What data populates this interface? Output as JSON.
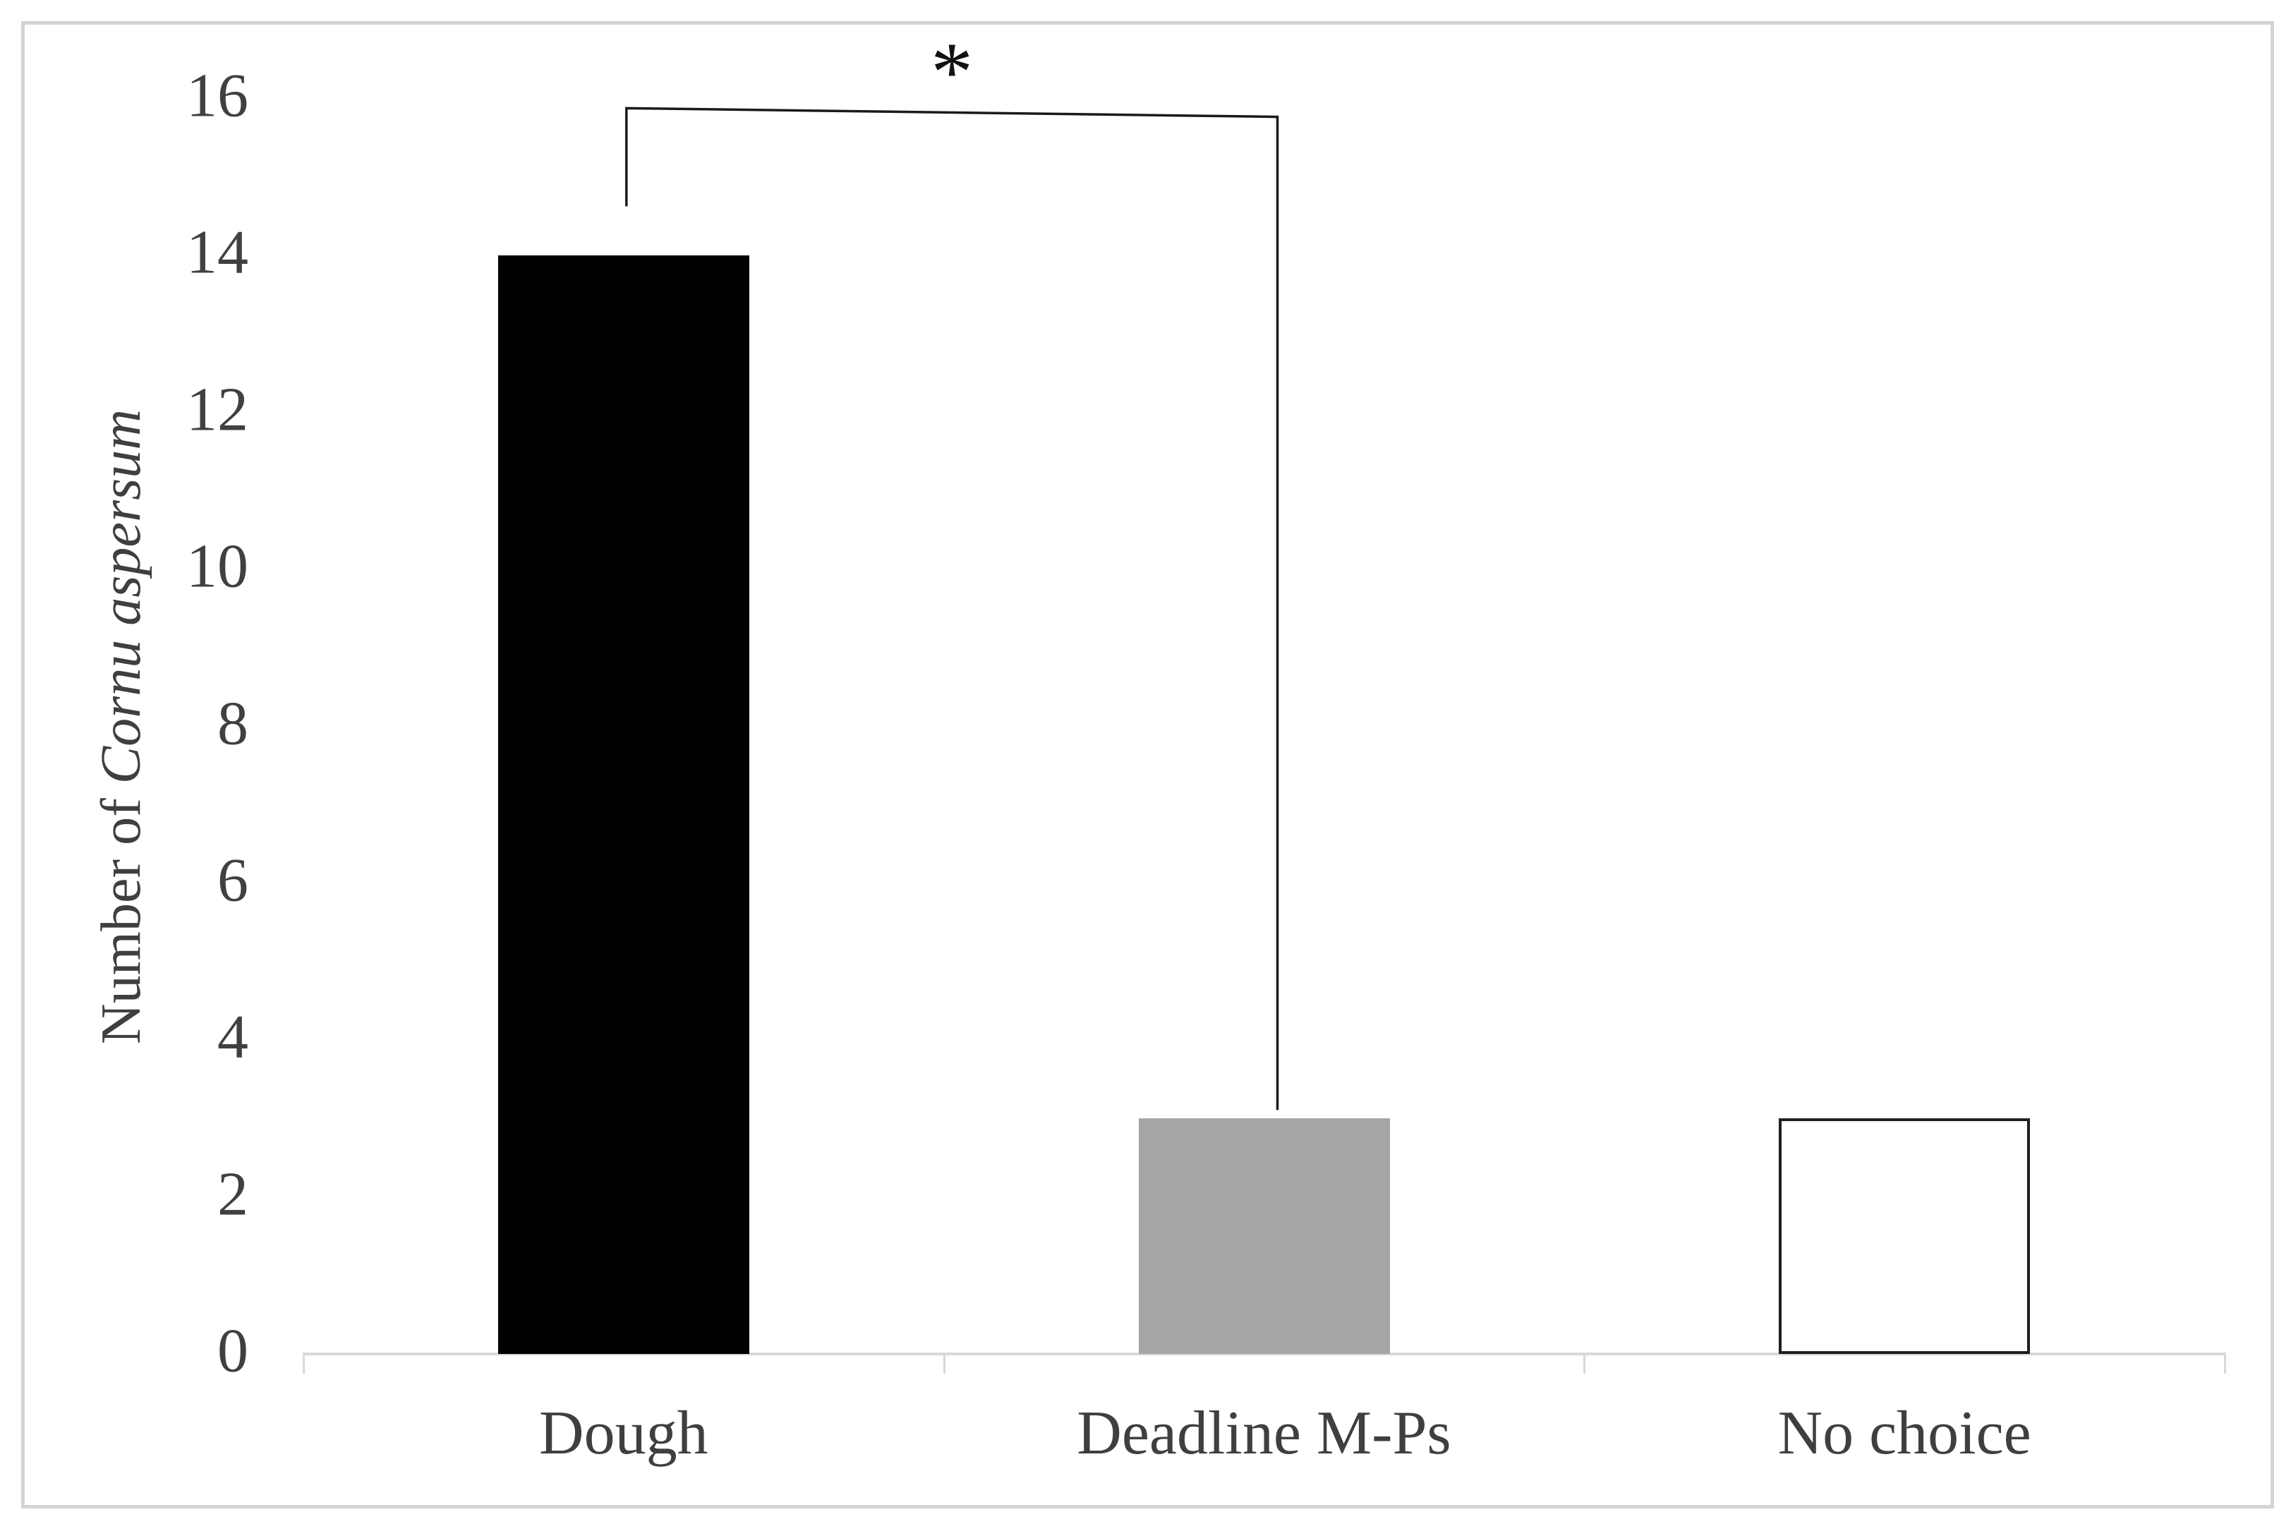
{
  "chart_data": {
    "type": "bar",
    "categories": [
      "Dough",
      "Deadline M-Ps",
      "No choice"
    ],
    "values": [
      14,
      3,
      3
    ],
    "title": "",
    "xlabel": "",
    "ylabel": "Number of Cornu aspersum",
    "ylabel_prefix": "Number of ",
    "ylabel_italic": "Cornu aspersum",
    "ylim": [
      0,
      16
    ],
    "yticks": [
      0,
      2,
      4,
      6,
      8,
      10,
      12,
      14,
      16
    ],
    "grid": false,
    "legend": false,
    "bar_fill_colors": [
      "#000000",
      "#a6a6a6",
      "#ffffff"
    ],
    "bar_border_colors": [
      "none",
      "none",
      "#1f1f1f"
    ],
    "annotation": {
      "symbol": "*",
      "from_category": "Dough",
      "to_category": "Deadline M-Ps",
      "y_top_left": 15.88,
      "y_top_right": 15.77,
      "y_arm_bottom_left": 14.63,
      "y_arm_bottom_right": 3.11
    }
  },
  "colors": {
    "axis_line": "#d9d9d9",
    "tick_label": "#404040",
    "category_label": "#3f3f3f",
    "frame_border": "#d4d4d4",
    "bracket": "#1a1a1a",
    "background": "#ffffff"
  }
}
